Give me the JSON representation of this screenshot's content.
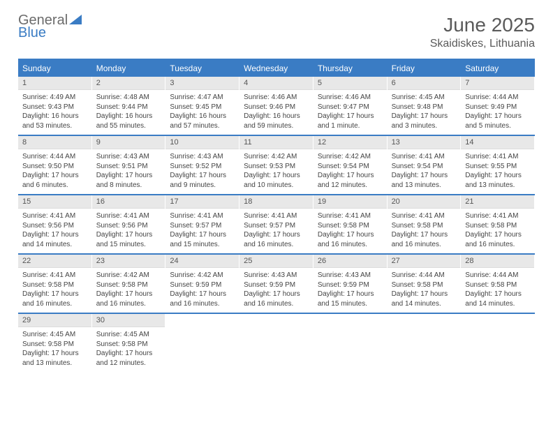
{
  "brand": {
    "name_part1": "General",
    "name_part2": "Blue"
  },
  "colors": {
    "accent": "#3a7cc4",
    "header_text": "#ffffff",
    "daynum_bg": "#e8e8e8",
    "text": "#444444",
    "title": "#5a5a5a"
  },
  "title": "June 2025",
  "location": "Skaidiskes, Lithuania",
  "day_headers": [
    "Sunday",
    "Monday",
    "Tuesday",
    "Wednesday",
    "Thursday",
    "Friday",
    "Saturday"
  ],
  "weeks": [
    [
      {
        "num": "1",
        "sunrise": "Sunrise: 4:49 AM",
        "sunset": "Sunset: 9:43 PM",
        "daylight": "Daylight: 16 hours and 53 minutes."
      },
      {
        "num": "2",
        "sunrise": "Sunrise: 4:48 AM",
        "sunset": "Sunset: 9:44 PM",
        "daylight": "Daylight: 16 hours and 55 minutes."
      },
      {
        "num": "3",
        "sunrise": "Sunrise: 4:47 AM",
        "sunset": "Sunset: 9:45 PM",
        "daylight": "Daylight: 16 hours and 57 minutes."
      },
      {
        "num": "4",
        "sunrise": "Sunrise: 4:46 AM",
        "sunset": "Sunset: 9:46 PM",
        "daylight": "Daylight: 16 hours and 59 minutes."
      },
      {
        "num": "5",
        "sunrise": "Sunrise: 4:46 AM",
        "sunset": "Sunset: 9:47 PM",
        "daylight": "Daylight: 17 hours and 1 minute."
      },
      {
        "num": "6",
        "sunrise": "Sunrise: 4:45 AM",
        "sunset": "Sunset: 9:48 PM",
        "daylight": "Daylight: 17 hours and 3 minutes."
      },
      {
        "num": "7",
        "sunrise": "Sunrise: 4:44 AM",
        "sunset": "Sunset: 9:49 PM",
        "daylight": "Daylight: 17 hours and 5 minutes."
      }
    ],
    [
      {
        "num": "8",
        "sunrise": "Sunrise: 4:44 AM",
        "sunset": "Sunset: 9:50 PM",
        "daylight": "Daylight: 17 hours and 6 minutes."
      },
      {
        "num": "9",
        "sunrise": "Sunrise: 4:43 AM",
        "sunset": "Sunset: 9:51 PM",
        "daylight": "Daylight: 17 hours and 8 minutes."
      },
      {
        "num": "10",
        "sunrise": "Sunrise: 4:43 AM",
        "sunset": "Sunset: 9:52 PM",
        "daylight": "Daylight: 17 hours and 9 minutes."
      },
      {
        "num": "11",
        "sunrise": "Sunrise: 4:42 AM",
        "sunset": "Sunset: 9:53 PM",
        "daylight": "Daylight: 17 hours and 10 minutes."
      },
      {
        "num": "12",
        "sunrise": "Sunrise: 4:42 AM",
        "sunset": "Sunset: 9:54 PM",
        "daylight": "Daylight: 17 hours and 12 minutes."
      },
      {
        "num": "13",
        "sunrise": "Sunrise: 4:41 AM",
        "sunset": "Sunset: 9:54 PM",
        "daylight": "Daylight: 17 hours and 13 minutes."
      },
      {
        "num": "14",
        "sunrise": "Sunrise: 4:41 AM",
        "sunset": "Sunset: 9:55 PM",
        "daylight": "Daylight: 17 hours and 13 minutes."
      }
    ],
    [
      {
        "num": "15",
        "sunrise": "Sunrise: 4:41 AM",
        "sunset": "Sunset: 9:56 PM",
        "daylight": "Daylight: 17 hours and 14 minutes."
      },
      {
        "num": "16",
        "sunrise": "Sunrise: 4:41 AM",
        "sunset": "Sunset: 9:56 PM",
        "daylight": "Daylight: 17 hours and 15 minutes."
      },
      {
        "num": "17",
        "sunrise": "Sunrise: 4:41 AM",
        "sunset": "Sunset: 9:57 PM",
        "daylight": "Daylight: 17 hours and 15 minutes."
      },
      {
        "num": "18",
        "sunrise": "Sunrise: 4:41 AM",
        "sunset": "Sunset: 9:57 PM",
        "daylight": "Daylight: 17 hours and 16 minutes."
      },
      {
        "num": "19",
        "sunrise": "Sunrise: 4:41 AM",
        "sunset": "Sunset: 9:58 PM",
        "daylight": "Daylight: 17 hours and 16 minutes."
      },
      {
        "num": "20",
        "sunrise": "Sunrise: 4:41 AM",
        "sunset": "Sunset: 9:58 PM",
        "daylight": "Daylight: 17 hours and 16 minutes."
      },
      {
        "num": "21",
        "sunrise": "Sunrise: 4:41 AM",
        "sunset": "Sunset: 9:58 PM",
        "daylight": "Daylight: 17 hours and 16 minutes."
      }
    ],
    [
      {
        "num": "22",
        "sunrise": "Sunrise: 4:41 AM",
        "sunset": "Sunset: 9:58 PM",
        "daylight": "Daylight: 17 hours and 16 minutes."
      },
      {
        "num": "23",
        "sunrise": "Sunrise: 4:42 AM",
        "sunset": "Sunset: 9:58 PM",
        "daylight": "Daylight: 17 hours and 16 minutes."
      },
      {
        "num": "24",
        "sunrise": "Sunrise: 4:42 AM",
        "sunset": "Sunset: 9:59 PM",
        "daylight": "Daylight: 17 hours and 16 minutes."
      },
      {
        "num": "25",
        "sunrise": "Sunrise: 4:43 AM",
        "sunset": "Sunset: 9:59 PM",
        "daylight": "Daylight: 17 hours and 16 minutes."
      },
      {
        "num": "26",
        "sunrise": "Sunrise: 4:43 AM",
        "sunset": "Sunset: 9:59 PM",
        "daylight": "Daylight: 17 hours and 15 minutes."
      },
      {
        "num": "27",
        "sunrise": "Sunrise: 4:44 AM",
        "sunset": "Sunset: 9:58 PM",
        "daylight": "Daylight: 17 hours and 14 minutes."
      },
      {
        "num": "28",
        "sunrise": "Sunrise: 4:44 AM",
        "sunset": "Sunset: 9:58 PM",
        "daylight": "Daylight: 17 hours and 14 minutes."
      }
    ],
    [
      {
        "num": "29",
        "sunrise": "Sunrise: 4:45 AM",
        "sunset": "Sunset: 9:58 PM",
        "daylight": "Daylight: 17 hours and 13 minutes."
      },
      {
        "num": "30",
        "sunrise": "Sunrise: 4:45 AM",
        "sunset": "Sunset: 9:58 PM",
        "daylight": "Daylight: 17 hours and 12 minutes."
      },
      null,
      null,
      null,
      null,
      null
    ]
  ]
}
